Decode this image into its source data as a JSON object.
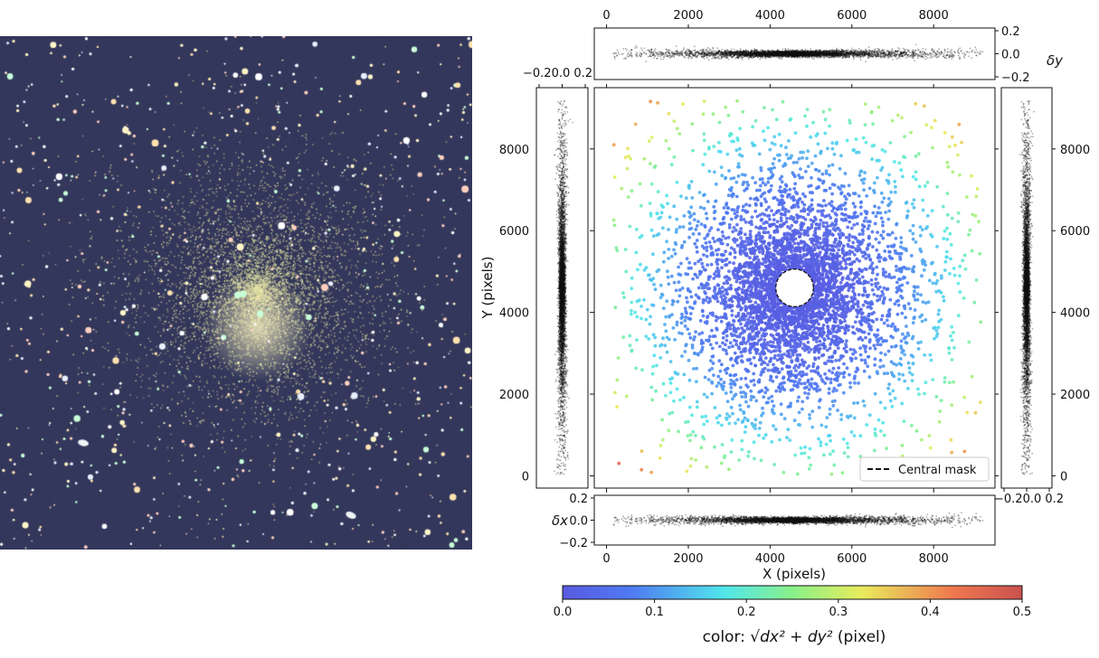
{
  "image": {
    "name": "globular-cluster-image"
  },
  "chart_data": [
    {
      "type": "scatter",
      "panel": "main",
      "xlabel": "X (pixels)",
      "ylabel": "Y (pixels)",
      "xlim": [
        -300,
        9500
      ],
      "ylim": [
        -300,
        9500
      ],
      "xticks": [
        0,
        2000,
        4000,
        6000,
        8000
      ],
      "yticks": [
        0,
        2000,
        4000,
        6000,
        8000
      ],
      "mask": {
        "center": [
          4600,
          4600
        ],
        "radius": 460
      },
      "legend": {
        "label": "Central mask",
        "placement": "lower-right"
      },
      "color_note": "color encodes distortion magnitude 0–0.5 px (blue near center, red at edges)"
    },
    {
      "type": "scatter",
      "panel": "top",
      "ylabel": "δy",
      "ylim": [
        -0.2,
        0.2
      ],
      "yticks": [
        "0.2",
        "0.0",
        "−0.2"
      ],
      "xticks": [
        0,
        2000,
        4000,
        6000,
        8000
      ]
    },
    {
      "type": "scatter",
      "panel": "bottom",
      "ylabel": "δx",
      "ylim": [
        -0.2,
        0.2
      ],
      "yticks": [
        "0.2",
        "0.0",
        "−0.2"
      ]
    },
    {
      "type": "scatter",
      "panel": "left",
      "xticks_text": "−0.20.0  0.2"
    },
    {
      "type": "scatter",
      "panel": "right",
      "xticks_text": "−0.20.0  0.2",
      "yticks": [
        0,
        2000,
        4000,
        6000,
        8000
      ]
    },
    {
      "type": "colorbar",
      "cmap": "jet",
      "range": [
        0.0,
        0.5
      ],
      "ticks": [
        "0.0",
        "0.1",
        "0.2",
        "0.3",
        "0.4",
        "0.5"
      ],
      "label_prefix": "color: ",
      "label_formula": "√dx² + dy²",
      "label_suffix": " (pixel)"
    }
  ]
}
